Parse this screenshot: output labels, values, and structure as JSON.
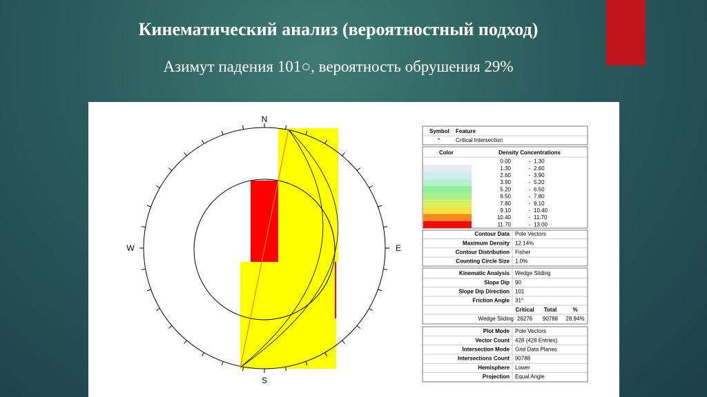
{
  "title": "Кинематический анализ (вероятностный подход)",
  "subtitle": "Азимут падения 101○, вероятность обрушения 29%",
  "stereonet": {
    "north": "N",
    "east": "E",
    "south": "S",
    "west": "W"
  },
  "symbol_table": {
    "header": [
      "Symbol",
      "Feature"
    ],
    "rows": [
      [
        "*",
        "Critical Intersection"
      ]
    ]
  },
  "density_table": {
    "header": [
      "Color",
      "Density Concentrations"
    ],
    "rows": [
      [
        "0.00",
        "-",
        "1.30"
      ],
      [
        "1.30",
        "-",
        "2.60"
      ],
      [
        "2.60",
        "-",
        "3.90"
      ],
      [
        "3.90",
        "-",
        "5.20"
      ],
      [
        "5.20",
        "-",
        "6.50"
      ],
      [
        "6.50",
        "-",
        "7.80"
      ],
      [
        "7.80",
        "-",
        "9.10"
      ],
      [
        "9.10",
        "-",
        "10.40"
      ],
      [
        "10.40",
        "-",
        "11.70"
      ],
      [
        "11.70",
        "-",
        "13.00"
      ]
    ]
  },
  "contour_table": {
    "rows": [
      [
        "Contour Data",
        "Pole Vectors"
      ],
      [
        "Maximum Density",
        "12.14%"
      ],
      [
        "Contour Distribution",
        "Fisher"
      ],
      [
        "Counting Circle Size",
        "1.0%"
      ]
    ]
  },
  "kinematic_table": {
    "rows": [
      [
        "Kinematic Analysis",
        "Wedge Sliding"
      ],
      [
        "Slope Dip",
        "90"
      ],
      [
        "Slope Dip Direction",
        "101"
      ],
      [
        "Friction Angle",
        "31°"
      ]
    ],
    "results_header": [
      "Critical",
      "Total",
      "%"
    ],
    "results_row": [
      "Wedge Sliding",
      "26276",
      "90788",
      "28.94%"
    ]
  },
  "plot_table": {
    "rows": [
      [
        "Plot Mode",
        "Pole Vectors"
      ],
      [
        "Vector Count",
        "428 (428 Entries)"
      ],
      [
        "Intersection Mode",
        "Grid Data Planes"
      ],
      [
        "Intersections Count",
        "90788"
      ],
      [
        "Hemisphere",
        "Lower"
      ],
      [
        "Projection",
        "Equal Angle"
      ]
    ]
  }
}
